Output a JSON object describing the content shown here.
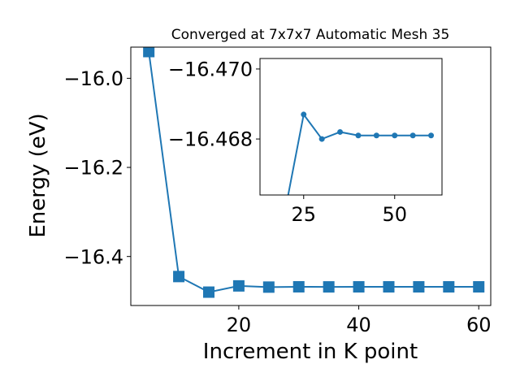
{
  "chart_data": [
    {
      "type": "line",
      "title": "Converged at 7x7x7 Automatic Mesh 35",
      "xlabel": "Increment in K point",
      "ylabel": "Energy (eV)",
      "xlim": [
        2,
        62
      ],
      "ylim": [
        -16.51,
        -15.93
      ],
      "xticks": [
        20,
        40,
        60
      ],
      "xtick_labels": [
        "20",
        "40",
        "60"
      ],
      "yticks": [
        -16.0,
        -16.2,
        -16.4
      ],
      "ytick_labels": [
        "−16.0",
        "−16.2",
        "−16.4"
      ],
      "grid": false,
      "marker": "square",
      "color": "#1f77b4",
      "series": [
        {
          "x": [
            5,
            10,
            15,
            20,
            25,
            30,
            35,
            40,
            45,
            50,
            55,
            60
          ],
          "y": [
            -15.94,
            -16.445,
            -16.48,
            -16.466,
            -16.4687,
            -16.468,
            -16.4682,
            -16.4681,
            -16.4681,
            -16.4681,
            -16.4681,
            -16.4681
          ]
        }
      ]
    },
    {
      "type": "line",
      "inset": true,
      "xlim": [
        13,
        63
      ],
      "ylim": [
        -16.4664,
        -16.4703
      ],
      "xticks": [
        25,
        50
      ],
      "xtick_labels": [
        "25",
        "50"
      ],
      "yticks": [
        -16.47,
        -16.468
      ],
      "ytick_labels": [
        "−16.470",
        "−16.468"
      ],
      "grid": false,
      "marker": "circle",
      "color": "#1f77b4",
      "series": [
        {
          "x": [
            20,
            25,
            30,
            35,
            40,
            45,
            50,
            55,
            60
          ],
          "y": [
            -16.466,
            -16.4687,
            -16.468,
            -16.4682,
            -16.4681,
            -16.4681,
            -16.4681,
            -16.4681,
            -16.4681
          ]
        }
      ]
    }
  ]
}
